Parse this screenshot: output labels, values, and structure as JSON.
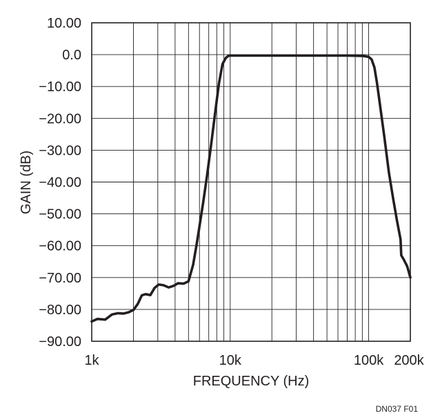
{
  "chart_data": {
    "type": "line",
    "title": "",
    "xlabel": "FREQUENCY (Hz)",
    "ylabel": "GAIN (dB)",
    "x_scale": "log",
    "xlim": [
      1000,
      200000
    ],
    "ylim": [
      -90,
      10
    ],
    "grid": true,
    "x_ticks": [
      {
        "value": 1000,
        "label": "1k"
      },
      {
        "value": 10000,
        "label": "10k"
      },
      {
        "value": 100000,
        "label": "100k"
      },
      {
        "value": 200000,
        "label": "200k"
      }
    ],
    "y_ticks": [
      {
        "value": 10,
        "label": "10.00"
      },
      {
        "value": 0,
        "label": "0.0"
      },
      {
        "value": -10,
        "label": "−10.00"
      },
      {
        "value": -20,
        "label": "−20.00"
      },
      {
        "value": -30,
        "label": "−30.00"
      },
      {
        "value": -40,
        "label": "−40.00"
      },
      {
        "value": -50,
        "label": "−50.00"
      },
      {
        "value": -60,
        "label": "−60.00"
      },
      {
        "value": -70,
        "label": "−70.00"
      },
      {
        "value": -80,
        "label": "−80.00"
      },
      {
        "value": -90,
        "label": "−90.00"
      }
    ],
    "series": [
      {
        "x": [
          1000,
          1100,
          1250,
          1400,
          1550,
          1700,
          1850,
          2000,
          2150,
          2300,
          2450,
          2650,
          2850,
          3050,
          3300,
          3600,
          3900,
          4200,
          4600,
          5000,
          5400,
          5700,
          6000,
          6400,
          6800,
          7300,
          7800,
          8300,
          8800,
          9300,
          9700,
          10000,
          12000,
          20000,
          40000,
          70000,
          90000,
          100000,
          105000,
          110000,
          115000,
          120000,
          130000,
          140000,
          150000,
          160000,
          170000,
          172000,
          180000,
          190000,
          200000
        ],
        "y": [
          -83.8,
          -83.0,
          -83.2,
          -81.6,
          -81.2,
          -81.3,
          -80.9,
          -80.2,
          -78.3,
          -75.6,
          -75.2,
          -75.5,
          -73.2,
          -72.2,
          -72.4,
          -73.1,
          -72.6,
          -71.8,
          -71.9,
          -71.2,
          -66.0,
          -60.0,
          -54.0,
          -46.0,
          -38.0,
          -28.0,
          -18.0,
          -9.0,
          -3.0,
          -1.0,
          -0.4,
          -0.3,
          -0.3,
          -0.3,
          -0.3,
          -0.3,
          -0.4,
          -0.7,
          -1.5,
          -4.0,
          -9.0,
          -15.0,
          -26.0,
          -37.0,
          -45.0,
          -52.0,
          -58.0,
          -63.0,
          -64.5,
          -66.5,
          -70.0
        ]
      }
    ]
  },
  "figure_id": "DN037 F01"
}
